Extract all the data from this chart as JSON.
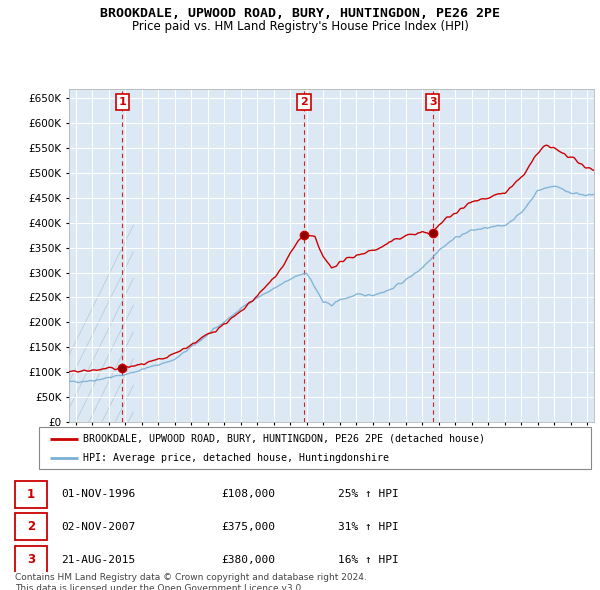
{
  "title": "BROOKDALE, UPWOOD ROAD, BURY, HUNTINGDON, PE26 2PE",
  "subtitle": "Price paid vs. HM Land Registry's House Price Index (HPI)",
  "ylim": [
    0,
    670000
  ],
  "yticks": [
    0,
    50000,
    100000,
    150000,
    200000,
    250000,
    300000,
    350000,
    400000,
    450000,
    500000,
    550000,
    600000,
    650000
  ],
  "xlim_start": 1993.6,
  "xlim_end": 2025.4,
  "sale_color": "#cc0000",
  "hpi_color": "#7ab0d4",
  "sale_label": "BROOKDALE, UPWOOD ROAD, BURY, HUNTINGDON, PE26 2PE (detached house)",
  "hpi_label": "HPI: Average price, detached house, Huntingdonshire",
  "transactions": [
    {
      "number": 1,
      "date_x": 1996.83,
      "price": 108000,
      "label": "01-NOV-1996",
      "pct": "25%"
    },
    {
      "number": 2,
      "date_x": 2007.83,
      "price": 375000,
      "label": "02-NOV-2007",
      "pct": "31%"
    },
    {
      "number": 3,
      "date_x": 2015.64,
      "price": 380000,
      "label": "21-AUG-2015",
      "pct": "16%"
    }
  ],
  "footer": "Contains HM Land Registry data © Crown copyright and database right 2024.\nThis data is licensed under the Open Government Licence v3.0.",
  "bg_chart": "#dce9f5",
  "background_color": "#ffffff",
  "grid_color": "#ffffff",
  "hatch_color": "#c8d8e8"
}
